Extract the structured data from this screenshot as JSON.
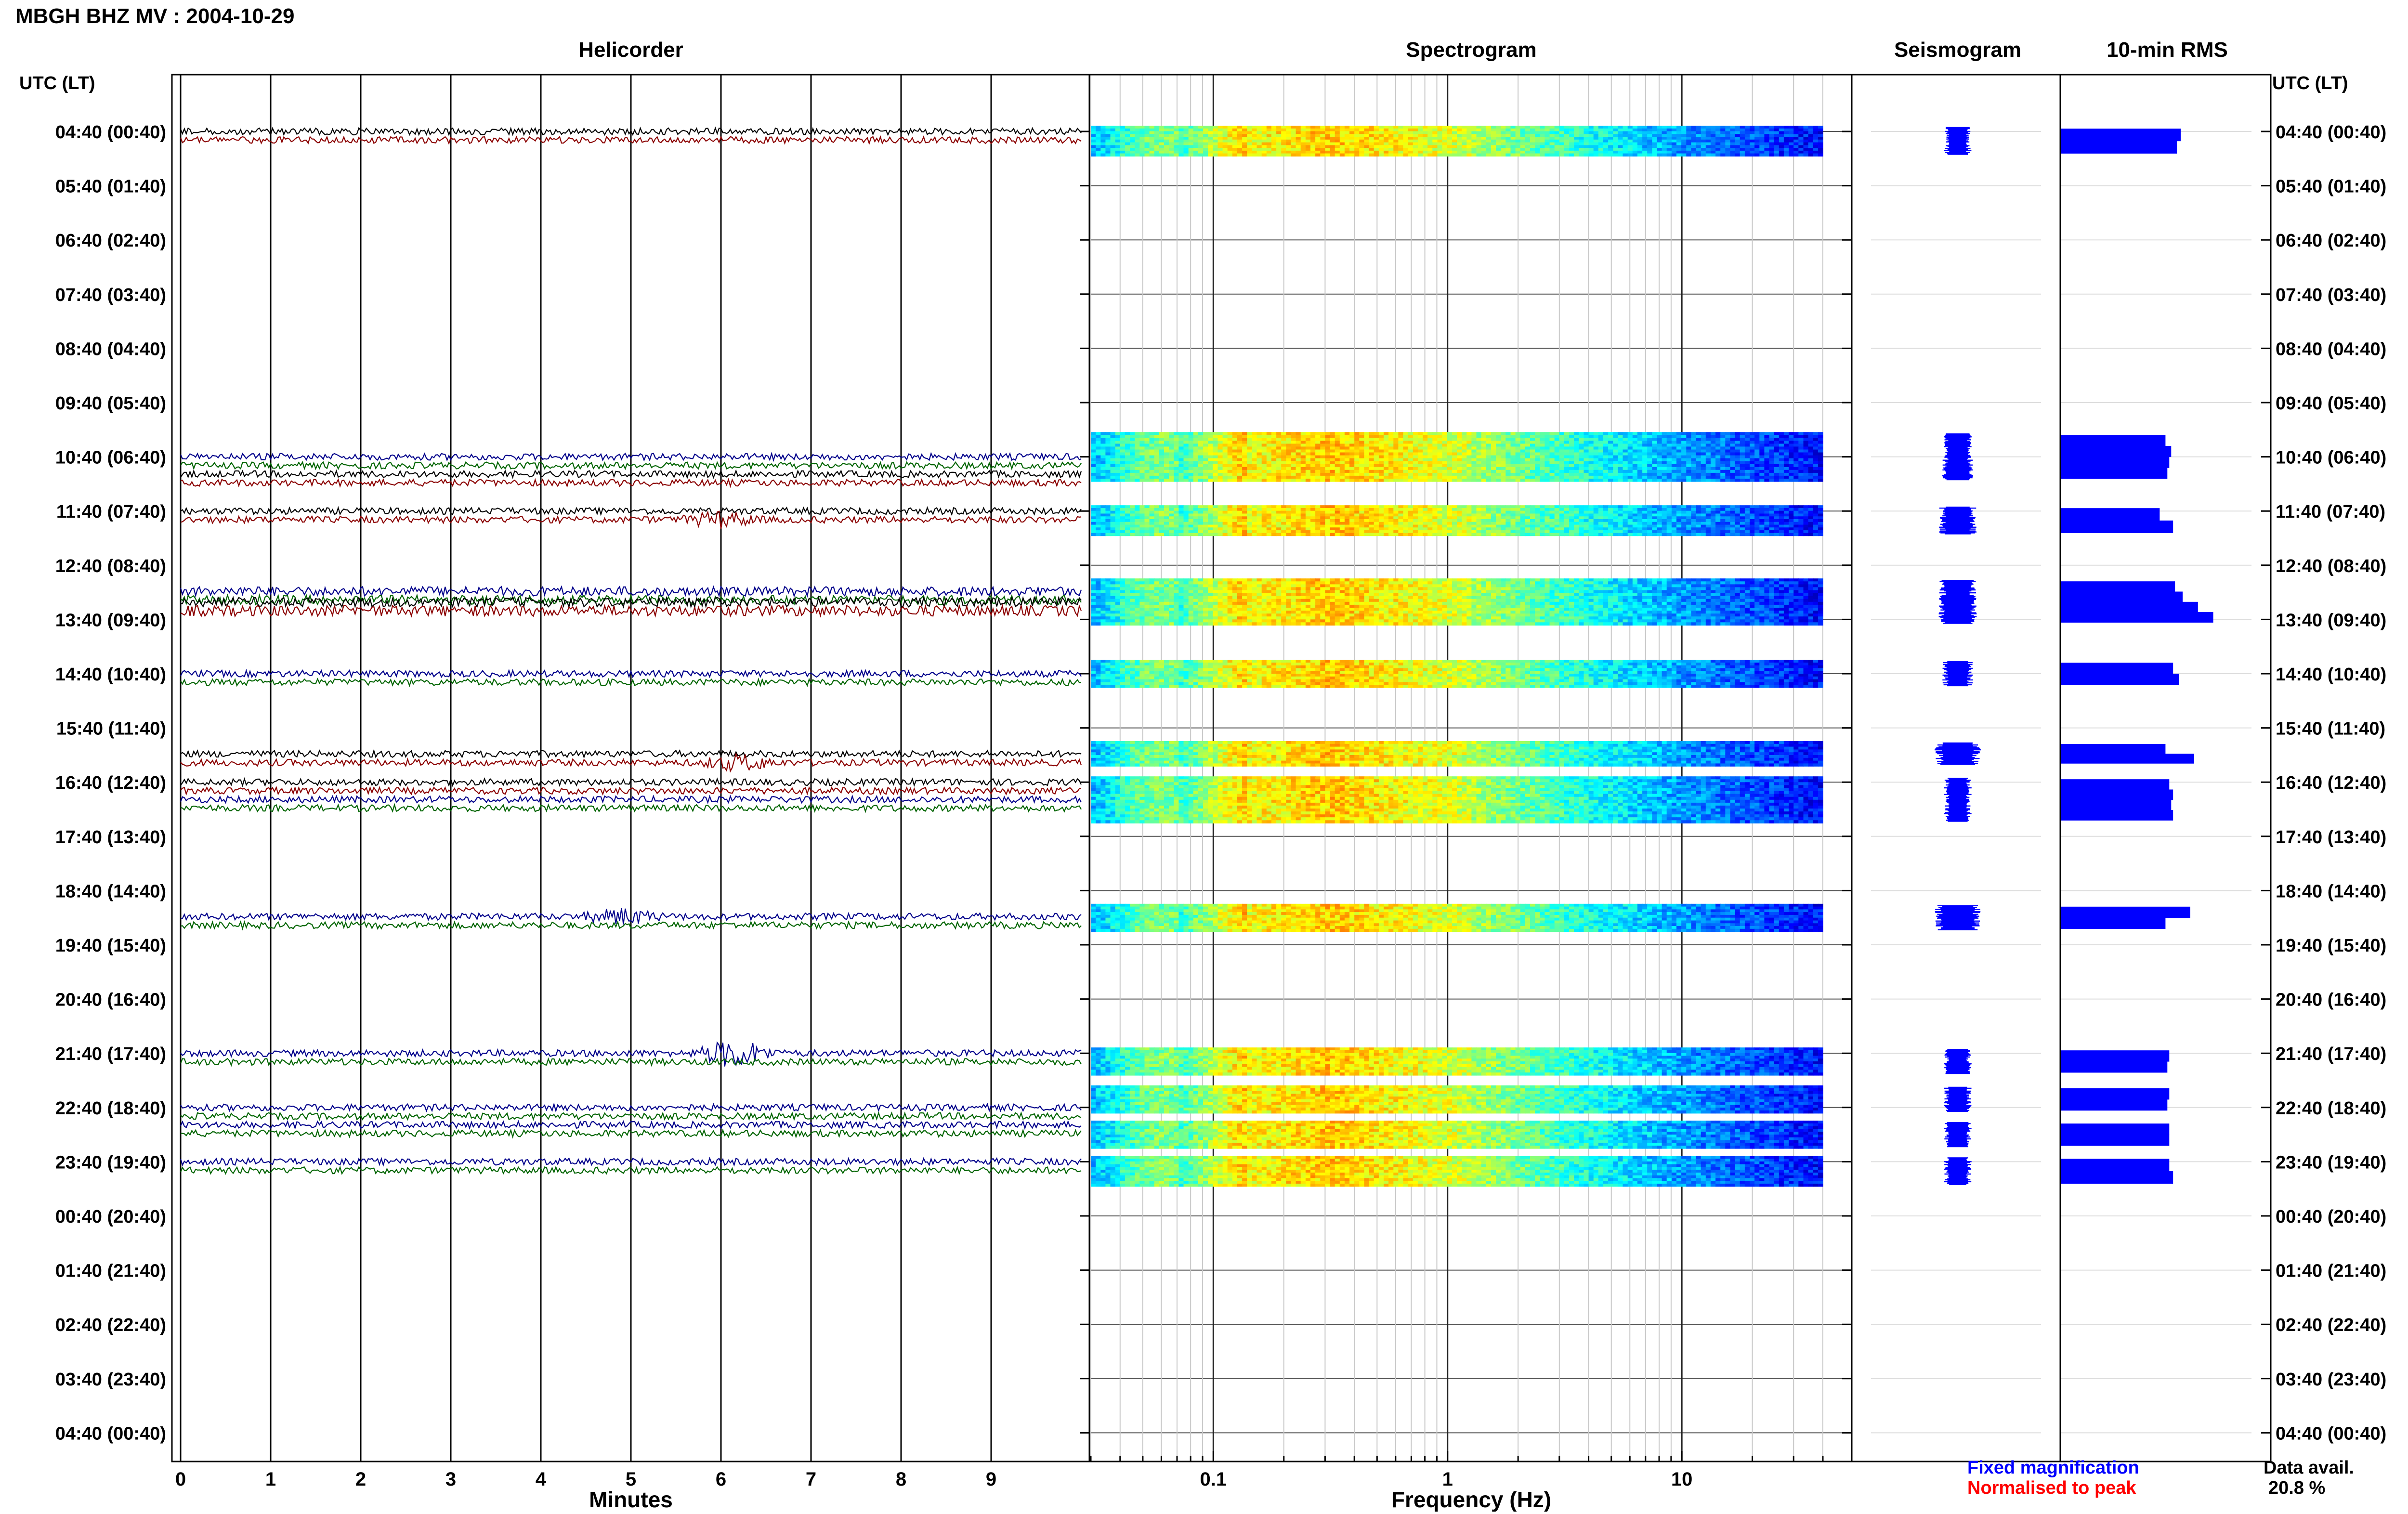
{
  "chart_data": {
    "type": "helicorder",
    "title": "MBGH BHZ MV : 2004-10-29",
    "panel_titles": {
      "helicorder": "Helicorder",
      "spectrogram": "Spectrogram",
      "seismogram": "Seismogram",
      "rms": "10-min RMS"
    },
    "row_axis_label": "UTC (LT)",
    "row_labels": [
      "04:40 (00:40)",
      "05:40 (01:40)",
      "06:40 (02:40)",
      "07:40 (03:40)",
      "08:40 (04:40)",
      "09:40 (05:40)",
      "10:40 (06:40)",
      "11:40 (07:40)",
      "12:40 (08:40)",
      "13:40 (09:40)",
      "14:40 (10:40)",
      "15:40 (11:40)",
      "16:40 (12:40)",
      "17:40 (13:40)",
      "18:40 (14:40)",
      "19:40 (15:40)",
      "20:40 (16:40)",
      "21:40 (17:40)",
      "22:40 (18:40)",
      "23:40 (19:40)",
      "00:40 (20:40)",
      "01:40 (21:40)",
      "02:40 (22:40)",
      "03:40 (23:40)",
      "04:40 (00:40)"
    ],
    "helicorder_x": {
      "label": "Minutes",
      "ticks": [
        "0",
        "1",
        "2",
        "3",
        "4",
        "5",
        "6",
        "7",
        "8",
        "9"
      ],
      "range": [
        0,
        10
      ]
    },
    "spectrogram_x": {
      "label": "Frequency (Hz)",
      "ticks": [
        "0.1",
        "1",
        "10"
      ],
      "scale": "log",
      "range": [
        0.03,
        40
      ]
    },
    "traces": [
      {
        "row": 0,
        "sub": 0,
        "color": "#000000",
        "amp": 1
      },
      {
        "row": 0,
        "sub": 1,
        "color": "#8b0000",
        "amp": 1
      },
      {
        "row": 6,
        "sub": 0,
        "color": "#00008b",
        "amp": 1
      },
      {
        "row": 6,
        "sub": 1,
        "color": "#006400",
        "amp": 1
      },
      {
        "row": 6,
        "sub": 2,
        "color": "#000000",
        "amp": 1
      },
      {
        "row": 6,
        "sub": 3,
        "color": "#8b0000",
        "amp": 1
      },
      {
        "row": 7,
        "sub": 0,
        "color": "#000000",
        "amp": 1
      },
      {
        "row": 7,
        "sub": 1,
        "color": "#8b0000",
        "amp": 1,
        "event_min": 6.0,
        "event_amp": 3
      },
      {
        "row": 8,
        "sub": 3,
        "color": "#00008b",
        "amp": 1.4
      },
      {
        "row": 8,
        "sub": 4,
        "color": "#006400",
        "amp": 1.4
      },
      {
        "row": 9,
        "sub": -2,
        "color": "#000000",
        "amp": 1.4
      },
      {
        "row": 9,
        "sub": -1,
        "color": "#8b0000",
        "amp": 1.6
      },
      {
        "row": 10,
        "sub": 0,
        "color": "#00008b",
        "amp": 1
      },
      {
        "row": 10,
        "sub": 1,
        "color": "#006400",
        "amp": 1
      },
      {
        "row": 11,
        "sub": 3,
        "color": "#000000",
        "amp": 1
      },
      {
        "row": 11,
        "sub": 4,
        "color": "#8b0000",
        "amp": 1,
        "event_min": 6.2,
        "event_amp": 3
      },
      {
        "row": 12,
        "sub": 0,
        "color": "#000000",
        "amp": 1
      },
      {
        "row": 12,
        "sub": 1,
        "color": "#8b0000",
        "amp": 1
      },
      {
        "row": 12,
        "sub": 2,
        "color": "#00008b",
        "amp": 1
      },
      {
        "row": 12,
        "sub": 3,
        "color": "#006400",
        "amp": 1
      },
      {
        "row": 14,
        "sub": 3,
        "color": "#00008b",
        "amp": 1,
        "event_min": 4.9,
        "event_amp": 3
      },
      {
        "row": 14,
        "sub": 4,
        "color": "#006400",
        "amp": 1
      },
      {
        "row": 17,
        "sub": 0,
        "color": "#00008b",
        "amp": 1,
        "event_min": 6.15,
        "event_amp": 5
      },
      {
        "row": 17,
        "sub": 1,
        "color": "#006400",
        "amp": 1
      },
      {
        "row": 18,
        "sub": 0,
        "color": "#00008b",
        "amp": 1
      },
      {
        "row": 18,
        "sub": 1,
        "color": "#006400",
        "amp": 1
      },
      {
        "row": 18,
        "sub": 2,
        "color": "#00008b",
        "amp": 1
      },
      {
        "row": 18,
        "sub": 3,
        "color": "#006400",
        "amp": 1
      },
      {
        "row": 19,
        "sub": 0,
        "color": "#00008b",
        "amp": 1
      },
      {
        "row": 19,
        "sub": 1,
        "color": "#006400",
        "amp": 1
      }
    ],
    "segments": [
      {
        "row": 0,
        "top": 0.0,
        "bottom": 0.35,
        "rms": [
          0.63,
          0.61
        ],
        "seis": 0.18
      },
      {
        "row": 6,
        "top": -0.35,
        "bottom": 0.35,
        "rms": [
          0.55,
          0.58,
          0.57,
          0.56
        ],
        "seis": 0.2
      },
      {
        "row": 7,
        "top": 0.0,
        "bottom": 0.35,
        "rms": [
          0.52,
          0.59
        ],
        "seis": 0.25
      },
      {
        "row": 8,
        "top": 0.35,
        "bottom": 1.0,
        "rms": [
          0.6,
          0.64,
          0.72,
          0.8
        ],
        "seis": 0.25
      },
      {
        "row": 10,
        "top": -0.15,
        "bottom": 0.15,
        "rms": [
          0.59,
          0.62
        ],
        "seis": 0.2
      },
      {
        "row": 11,
        "top": 0.35,
        "bottom": 0.6,
        "rms": [
          0.55,
          0.7
        ],
        "seis": 0.3
      },
      {
        "row": 12,
        "top": 0.0,
        "bottom": 0.65,
        "rms": [
          0.57,
          0.59,
          0.58,
          0.59
        ],
        "seis": 0.18
      },
      {
        "row": 14,
        "top": 0.35,
        "bottom": 0.65,
        "rms": [
          0.68,
          0.55
        ],
        "seis": 0.3
      },
      {
        "row": 17,
        "top": 0.0,
        "bottom": 0.3,
        "rms": [
          0.57,
          0.56
        ],
        "seis": 0.18
      },
      {
        "row": 18,
        "top": -0.3,
        "bottom": 0.0,
        "rms": [
          0.57,
          0.56
        ],
        "seis": 0.18
      },
      {
        "row": 18,
        "top": 0.35,
        "bottom": 0.65,
        "rms": [
          0.57,
          0.57
        ],
        "seis": 0.18
      },
      {
        "row": 19,
        "top": 0.0,
        "bottom": 0.35,
        "rms": [
          0.57,
          0.59
        ],
        "seis": 0.18
      }
    ],
    "legend": {
      "fixed": "Fixed magnification",
      "normalised": "Normalised to peak"
    },
    "data_avail": {
      "label": "Data avail.",
      "value": "20.8 %"
    },
    "colors": {
      "fixed_magnification": "#0000ff",
      "normalised_to_peak": "#ff0000",
      "trace_black": "#000000",
      "trace_darkred": "#8b0000",
      "trace_darkblue": "#00008b",
      "trace_green": "#006400",
      "bar_blue": "#0000ff"
    },
    "grid": true
  }
}
